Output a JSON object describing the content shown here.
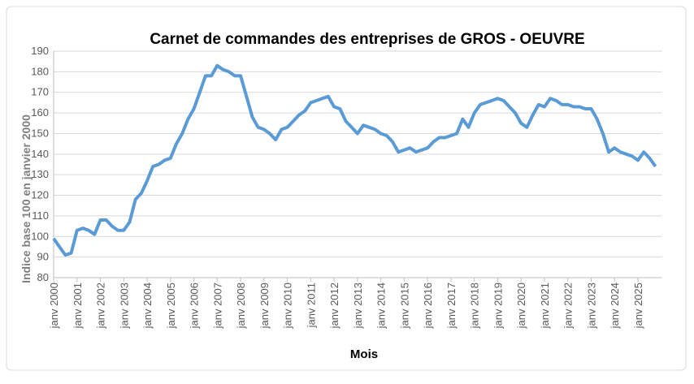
{
  "chart_data": {
    "type": "line",
    "title": "Carnet de commandes des entreprises de GROS - OEUVRE",
    "x_label": "Mois",
    "y_label": "Indice base 100 en janvier 2000",
    "categories": [
      "janv 2000",
      null,
      null,
      null,
      "janv 2001",
      null,
      null,
      null,
      "janv 2002",
      null,
      null,
      null,
      "janv 2003",
      null,
      null,
      null,
      "janv 2004",
      null,
      null,
      null,
      "janv 2005",
      null,
      null,
      null,
      "janv 2006",
      null,
      null,
      null,
      "janv 2007",
      null,
      null,
      null,
      "janv 2008",
      null,
      null,
      null,
      "janv 2009",
      null,
      null,
      null,
      "janv 2010",
      null,
      null,
      null,
      "janv 2011",
      null,
      null,
      null,
      "janv 2012",
      null,
      null,
      null,
      "janv 2013",
      null,
      null,
      null,
      "janv 2014",
      null,
      null,
      null,
      "janv 2015",
      null,
      null,
      null,
      "janv 2016",
      null,
      null,
      null,
      "janv 2017",
      null,
      null,
      null,
      "janv 2018",
      null,
      null,
      null,
      "janv 2019",
      null,
      null,
      null,
      "janv 2020",
      null,
      null,
      null,
      "janv 2021",
      null,
      null,
      null,
      "janv 2022",
      null,
      null,
      null,
      "janv 2023",
      null,
      null,
      null,
      "janv 2024",
      null,
      null,
      null,
      "janv 2025",
      null,
      null,
      null
    ],
    "values": [
      99,
      95,
      91,
      92,
      103,
      104,
      103,
      101,
      108,
      108,
      105,
      103,
      103,
      107,
      118,
      121,
      127,
      134,
      135,
      137,
      138,
      145,
      150,
      157,
      162,
      170,
      178,
      178,
      183,
      181,
      180,
      178,
      178,
      168,
      158,
      153,
      152,
      150,
      147,
      152,
      153,
      156,
      159,
      161,
      165,
      166,
      167,
      168,
      163,
      162,
      156,
      153,
      150,
      154,
      153,
      152,
      150,
      149,
      146,
      141,
      142,
      143,
      141,
      142,
      143,
      146,
      148,
      148,
      149,
      150,
      157,
      153,
      160,
      164,
      165,
      166,
      167,
      166,
      163,
      160,
      155,
      153,
      159,
      164,
      163,
      167,
      166,
      164,
      164,
      163,
      163,
      162,
      162,
      157,
      150,
      141,
      143,
      141,
      140,
      139,
      137,
      141,
      138,
      134
    ],
    "color": "#5b9bd5",
    "ylim": [
      80,
      190
    ],
    "yticks": [
      80,
      90,
      100,
      110,
      120,
      130,
      140,
      150,
      160,
      170,
      180,
      190
    ],
    "grid": true
  }
}
